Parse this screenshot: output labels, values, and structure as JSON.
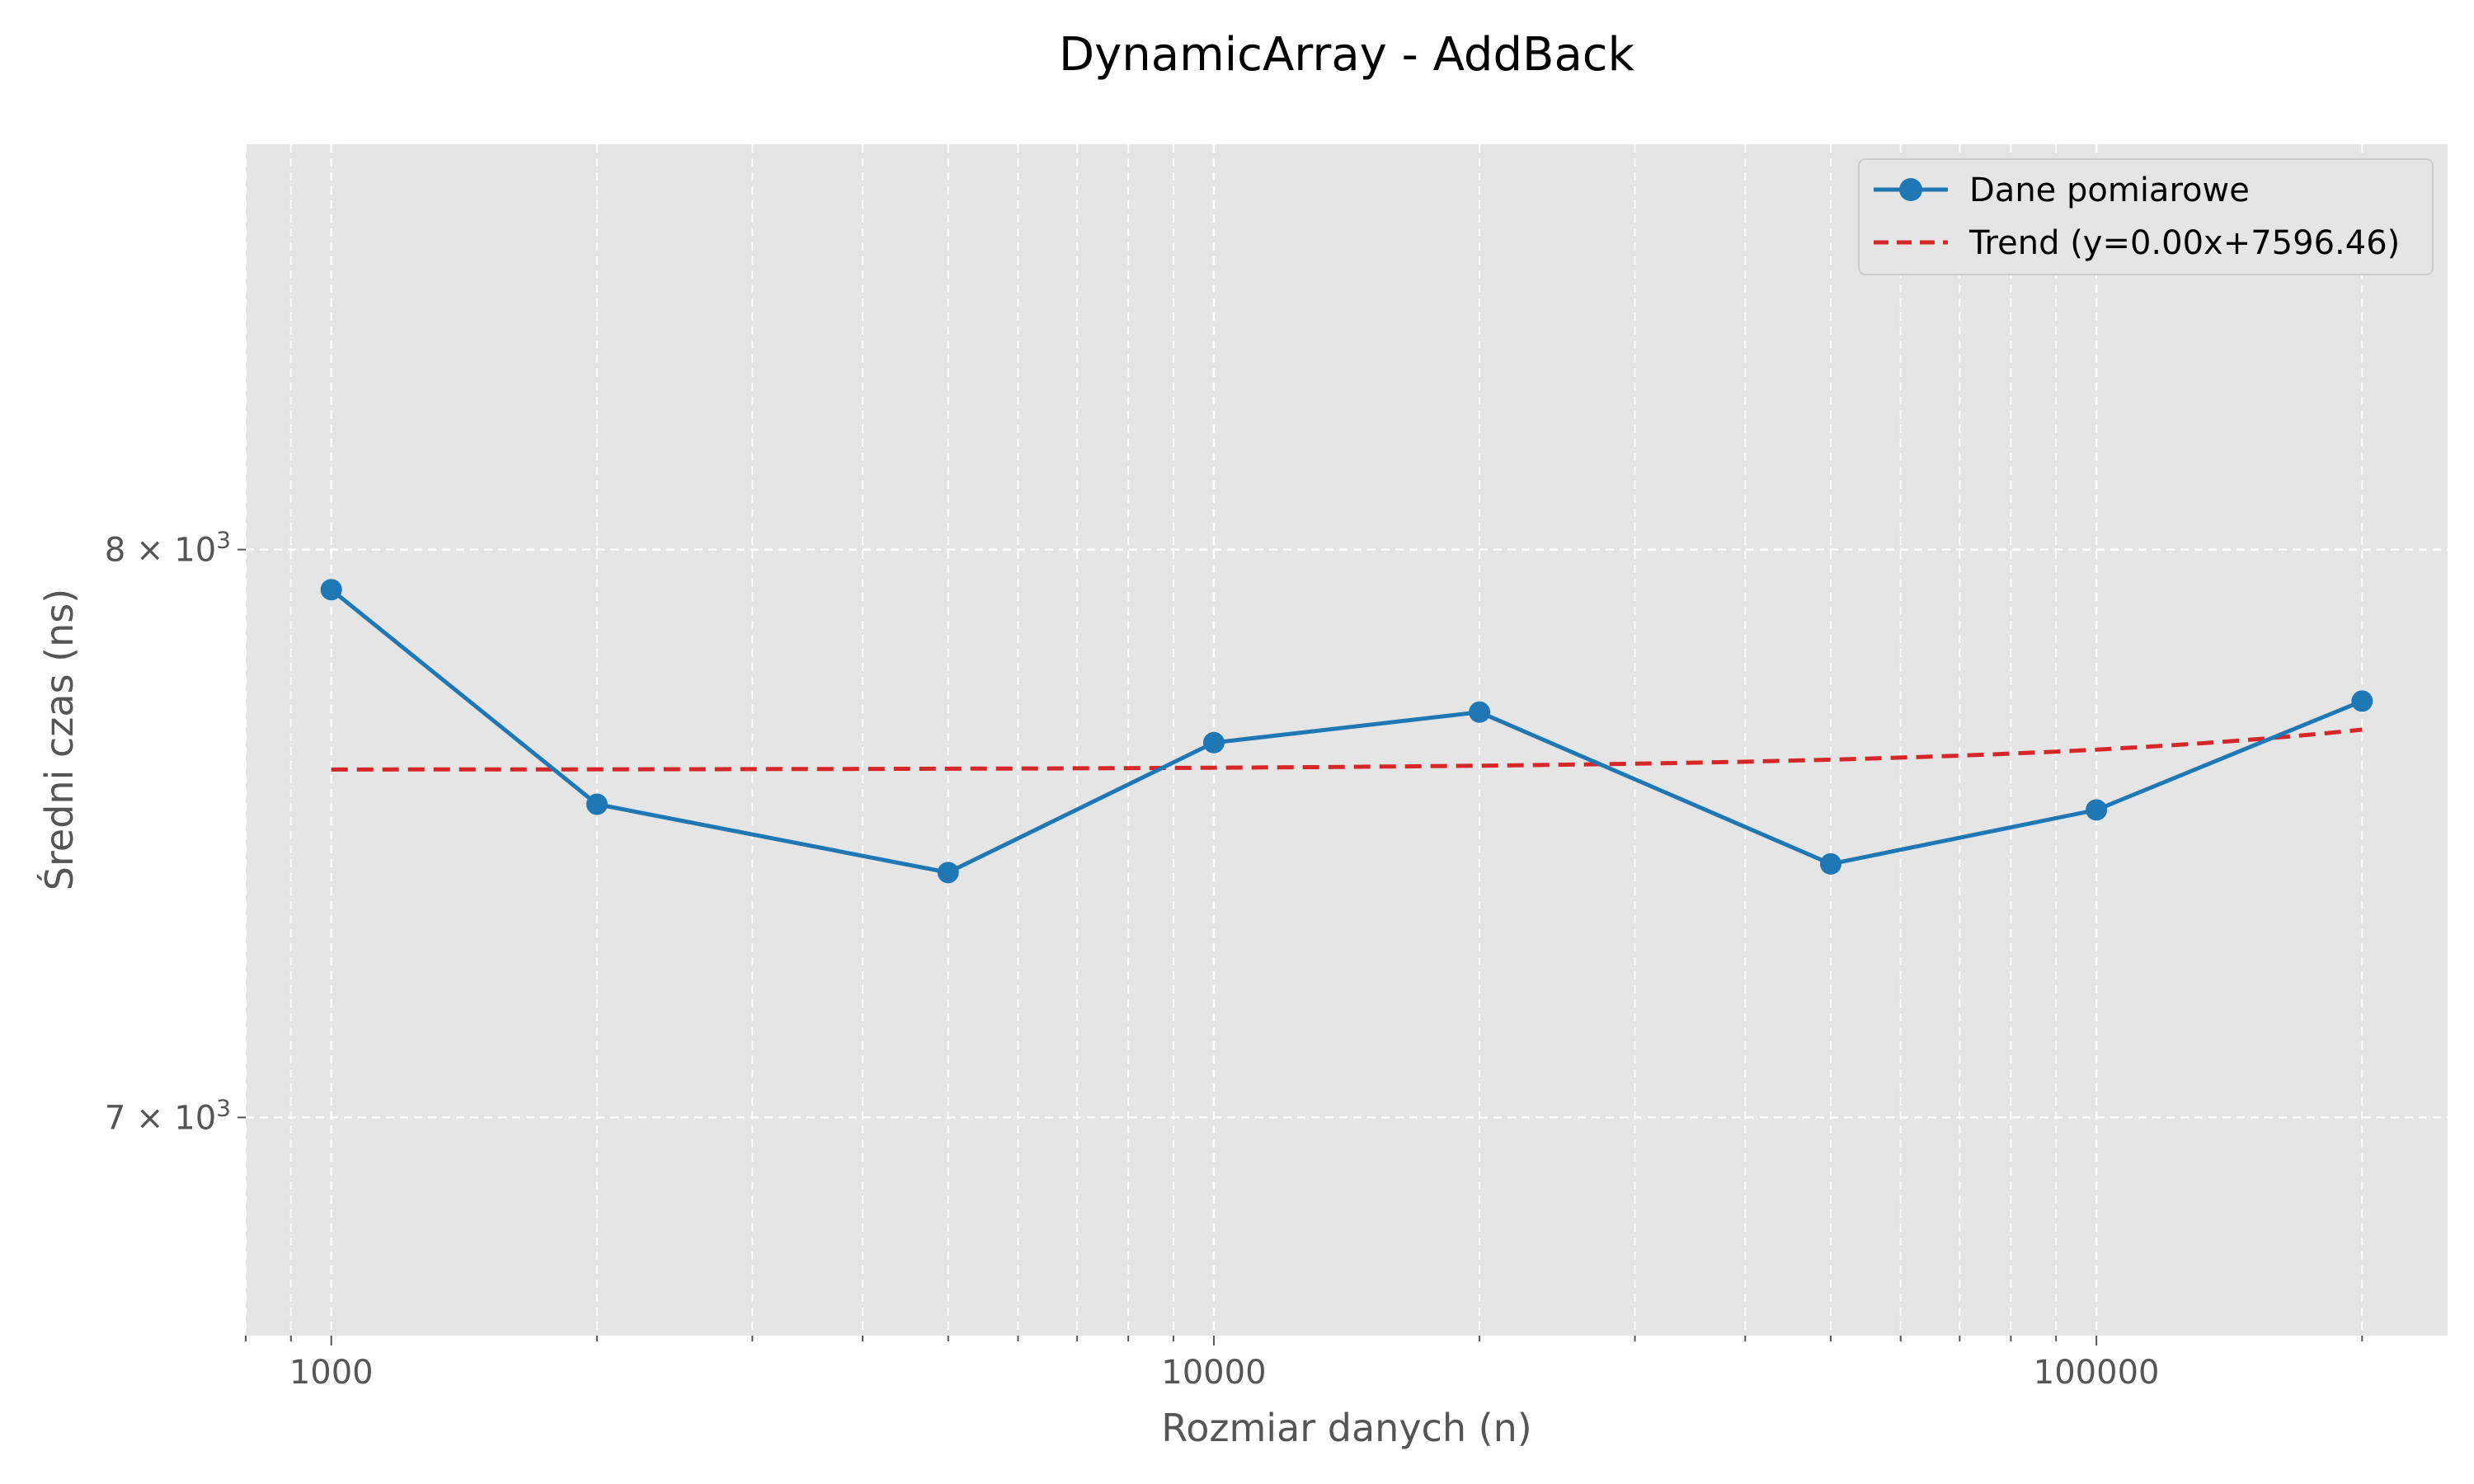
{
  "chart_data": {
    "type": "line",
    "title": "DynamicArray - AddBack",
    "xlabel": "Rozmiar danych (n)",
    "ylabel": "Średni czas (ns)",
    "xscale": "log",
    "yscale": "log",
    "xlim": [
      800,
      250000
    ],
    "ylim": [
      6650,
      8800
    ],
    "x_ticks": [
      {
        "value": 1000,
        "label": "1000"
      },
      {
        "value": 10000,
        "label": "10000"
      },
      {
        "value": 100000,
        "label": "100000"
      }
    ],
    "y_ticks": [
      {
        "value": 7000,
        "mantissa": "7",
        "base": "10",
        "exp": "3"
      },
      {
        "value": 8000,
        "mantissa": "8",
        "base": "10",
        "exp": "3"
      }
    ],
    "grid": true,
    "legend_position": "top-right",
    "series": [
      {
        "name": "Dane pomiarowe",
        "style": "solid-line-with-markers",
        "color": "#1f77b4",
        "x": [
          1000,
          2000,
          5000,
          10000,
          20000,
          50000,
          100000,
          200000
        ],
        "y": [
          7925,
          7535,
          7415,
          7645,
          7700,
          7430,
          7525,
          7720
        ]
      },
      {
        "name": "Trend (y=0.00x+7596.46)",
        "style": "dashed-line",
        "color": "#d62728",
        "slope": 0.00036,
        "intercept": 7596.46
      }
    ],
    "colors": {
      "plot_background": "#e5e5e5",
      "grid": "#ffffff"
    }
  }
}
